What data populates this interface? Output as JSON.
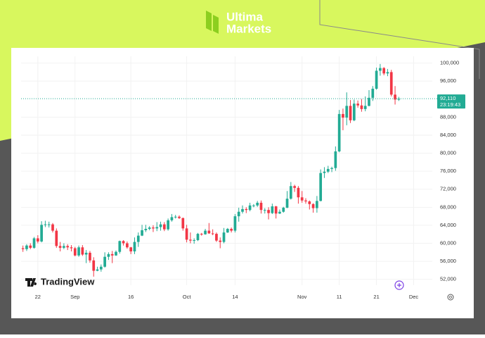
{
  "header": {
    "logo_line1": "Ultima",
    "logo_line2": "Markets"
  },
  "chart_data": {
    "type": "candlestick",
    "watermark": "TradingView",
    "up_color": "#22ab94",
    "down_color": "#f23645",
    "xlim": [
      -0.5,
      110
    ],
    "xticks": [
      {
        "value": 4,
        "label": "22"
      },
      {
        "value": 14,
        "label": "Sep"
      },
      {
        "value": 29,
        "label": "16"
      },
      {
        "value": 44,
        "label": "Oct"
      },
      {
        "value": 57,
        "label": "14"
      },
      {
        "value": 75,
        "label": "Nov"
      },
      {
        "value": 85,
        "label": "11"
      },
      {
        "value": 95,
        "label": "21"
      },
      {
        "value": 105,
        "label": "Dec"
      }
    ],
    "ylim": [
      50700,
      101500
    ],
    "yticks": [
      {
        "value": 52000,
        "label": "52,000"
      },
      {
        "value": 56000,
        "label": "56,000"
      },
      {
        "value": 60000,
        "label": "60,000"
      },
      {
        "value": 64000,
        "label": "64,000"
      },
      {
        "value": 68000,
        "label": "68,000"
      },
      {
        "value": 72000,
        "label": "72,000"
      },
      {
        "value": 76000,
        "label": "76,000"
      },
      {
        "value": 80000,
        "label": "80,000"
      },
      {
        "value": 84000,
        "label": "84,000"
      },
      {
        "value": 88000,
        "label": "88,000"
      },
      {
        "value": 96000,
        "label": "96,000"
      },
      {
        "value": 100000,
        "label": "100,000"
      }
    ],
    "last_price": {
      "value": 92110,
      "label": "92,110"
    },
    "countdown": "23:19:43",
    "open": [
      58900,
      58700,
      59500,
      59000,
      61100,
      60400,
      64100,
      64200,
      64200,
      62800,
      59400,
      59000,
      59400,
      59100,
      58900,
      57300,
      59100,
      57500,
      57900,
      56200,
      53900,
      54200,
      54800,
      57000,
      57600,
      57300,
      58100,
      60500,
      60000,
      59100,
      58200,
      60300,
      61700,
      62900,
      63200,
      63500,
      63300,
      63600,
      64200,
      63100,
      65100,
      65800,
      65900,
      65600,
      63300,
      60800,
      60600,
      60700,
      62100,
      62000,
      62800,
      62200,
      62100,
      60600,
      60300,
      62400,
      63200,
      62800,
      66000,
      67000,
      67600,
      67400,
      68400,
      68400,
      69000,
      67400,
      67400,
      66700,
      68200,
      66600,
      67000,
      67900,
      69900,
      72700,
      72300,
      70200,
      69500,
      69300,
      68700,
      67800,
      69400,
      75600,
      75900,
      76500,
      76700,
      80400,
      88700,
      87900,
      90500,
      87300,
      91000,
      90600,
      89800,
      90500,
      92300,
      94300,
      98300,
      98900,
      97700,
      98000,
      93000,
      91900
    ],
    "high": [
      59500,
      59800,
      60000,
      61400,
      61800,
      64900,
      65000,
      64800,
      64500,
      63300,
      60300,
      60000,
      59800,
      59600,
      59200,
      59500,
      59600,
      58500,
      58300,
      56900,
      54800,
      55300,
      58000,
      58000,
      58300,
      58400,
      60600,
      60700,
      60400,
      59200,
      61300,
      62400,
      64100,
      64100,
      63800,
      64000,
      64700,
      64800,
      64700,
      65500,
      66500,
      66300,
      66200,
      65700,
      64100,
      62400,
      61100,
      62300,
      62300,
      63200,
      64500,
      63100,
      62400,
      61300,
      63400,
      63400,
      63500,
      66500,
      67900,
      68400,
      68000,
      69000,
      68700,
      69400,
      69500,
      67800,
      68000,
      68800,
      68300,
      67500,
      68100,
      71600,
      73600,
      73000,
      72700,
      71600,
      70000,
      69500,
      68900,
      70500,
      76400,
      76900,
      77200,
      77000,
      81500,
      89600,
      89900,
      93500,
      91800,
      91900,
      91700,
      92000,
      92600,
      94000,
      94900,
      99000,
      99800,
      99100,
      98700,
      98500,
      94900,
      92500
    ],
    "low": [
      58100,
      58300,
      58700,
      58800,
      60000,
      60200,
      63600,
      63500,
      62400,
      59000,
      58200,
      58700,
      58500,
      58200,
      57100,
      57000,
      57200,
      55600,
      55700,
      52600,
      53800,
      53700,
      54600,
      56300,
      55600,
      57200,
      57700,
      59500,
      58800,
      57600,
      57600,
      59200,
      61600,
      62500,
      62900,
      62500,
      62700,
      62800,
      62700,
      62800,
      64800,
      65500,
      65400,
      62800,
      60200,
      60000,
      59900,
      60500,
      61700,
      61900,
      62100,
      61800,
      60300,
      58900,
      60000,
      62300,
      62400,
      62400,
      64800,
      66600,
      66700,
      67100,
      68000,
      68100,
      66600,
      66600,
      65300,
      66500,
      65500,
      66500,
      66800,
      67800,
      69700,
      71400,
      68800,
      69000,
      68800,
      67500,
      66800,
      66800,
      69300,
      74500,
      75600,
      75800,
      76100,
      80200,
      85100,
      86200,
      86700,
      87100,
      90100,
      89200,
      89300,
      90400,
      91600,
      94100,
      97200,
      97300,
      97100,
      92600,
      90800,
      91600
    ],
    "close": [
      58700,
      59500,
      59000,
      61100,
      60400,
      64100,
      64200,
      64200,
      62800,
      59400,
      59000,
      59400,
      59100,
      58900,
      57300,
      59100,
      57500,
      57900,
      56200,
      53900,
      54200,
      54800,
      57000,
      57600,
      57300,
      58100,
      60500,
      60000,
      59100,
      58200,
      60300,
      61700,
      62900,
      63200,
      63500,
      63300,
      63600,
      64200,
      63100,
      65100,
      65800,
      65900,
      65600,
      63300,
      60800,
      60600,
      60700,
      62100,
      62000,
      62800,
      62200,
      62100,
      60600,
      60300,
      62400,
      63200,
      62800,
      66000,
      67000,
      67600,
      67400,
      68400,
      68400,
      69000,
      67400,
      67400,
      66700,
      68200,
      66600,
      67000,
      67900,
      69900,
      72700,
      72300,
      70200,
      69500,
      69300,
      68700,
      67800,
      69400,
      75600,
      75900,
      76500,
      76700,
      80400,
      88700,
      87900,
      90500,
      87300,
      91000,
      90600,
      89800,
      90500,
      92300,
      94300,
      98300,
      98900,
      97700,
      98000,
      93000,
      91900,
      92110
    ]
  }
}
